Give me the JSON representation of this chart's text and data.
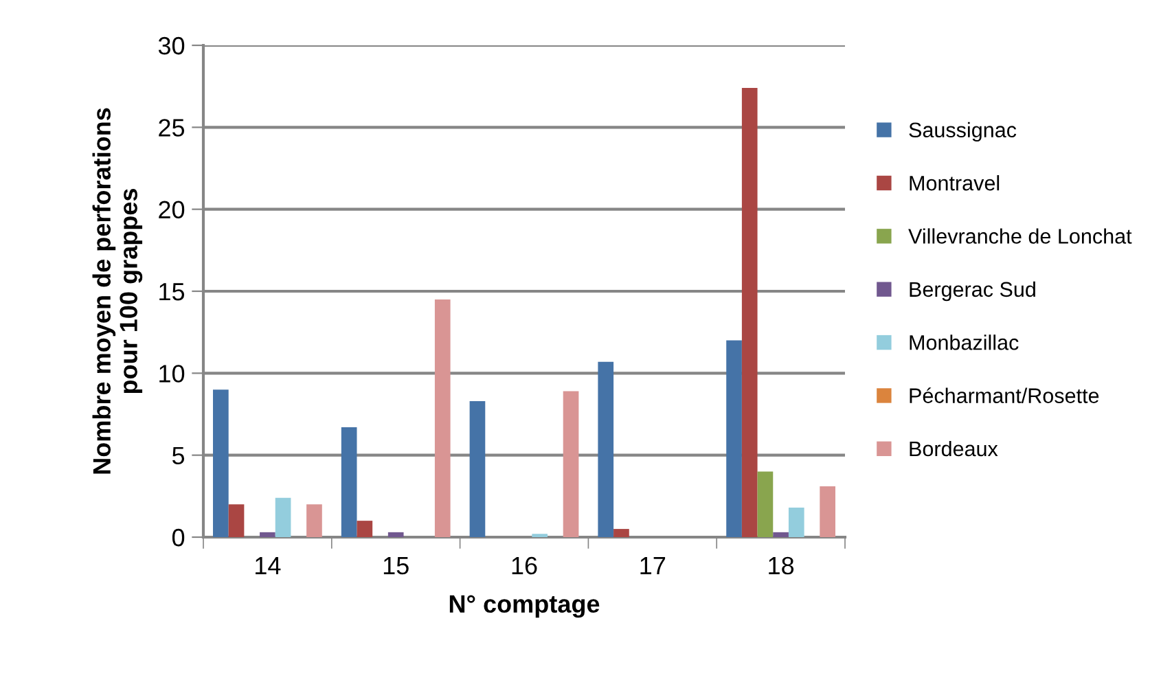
{
  "chart_data": {
    "type": "bar",
    "xlabel": "N° comptage",
    "ylabel": "Nombre moyen de perforations\npour 100 grappes",
    "categories": [
      "14",
      "15",
      "16",
      "17",
      "18"
    ],
    "series": [
      {
        "name": "Saussignac",
        "color": "#4573a7",
        "values": [
          9.0,
          6.7,
          8.3,
          10.7,
          12.0
        ]
      },
      {
        "name": "Montravel",
        "color": "#aa4643",
        "values": [
          2.0,
          1.0,
          0,
          0.5,
          27.4
        ]
      },
      {
        "name": "Villevranche de Lonchat",
        "color": "#89a54e",
        "values": [
          0,
          0,
          0,
          0,
          4.0
        ]
      },
      {
        "name": "Bergerac Sud",
        "color": "#71588f",
        "values": [
          0.3,
          0.3,
          0,
          0,
          0.3
        ]
      },
      {
        "name": "Monbazillac",
        "color": "#93cddd",
        "values": [
          2.4,
          0,
          0.2,
          0,
          1.8
        ]
      },
      {
        "name": "Pécharmant/Rosette",
        "color": "#db843d",
        "values": [
          0,
          0,
          0,
          0,
          0
        ]
      },
      {
        "name": "Bordeaux",
        "color": "#d99594",
        "values": [
          2.0,
          14.5,
          8.9,
          0,
          3.1
        ]
      }
    ],
    "ylim": [
      0,
      30
    ],
    "yticks": [
      0,
      5,
      10,
      15,
      20,
      25,
      30
    ],
    "grid": "y",
    "legend": "right"
  }
}
